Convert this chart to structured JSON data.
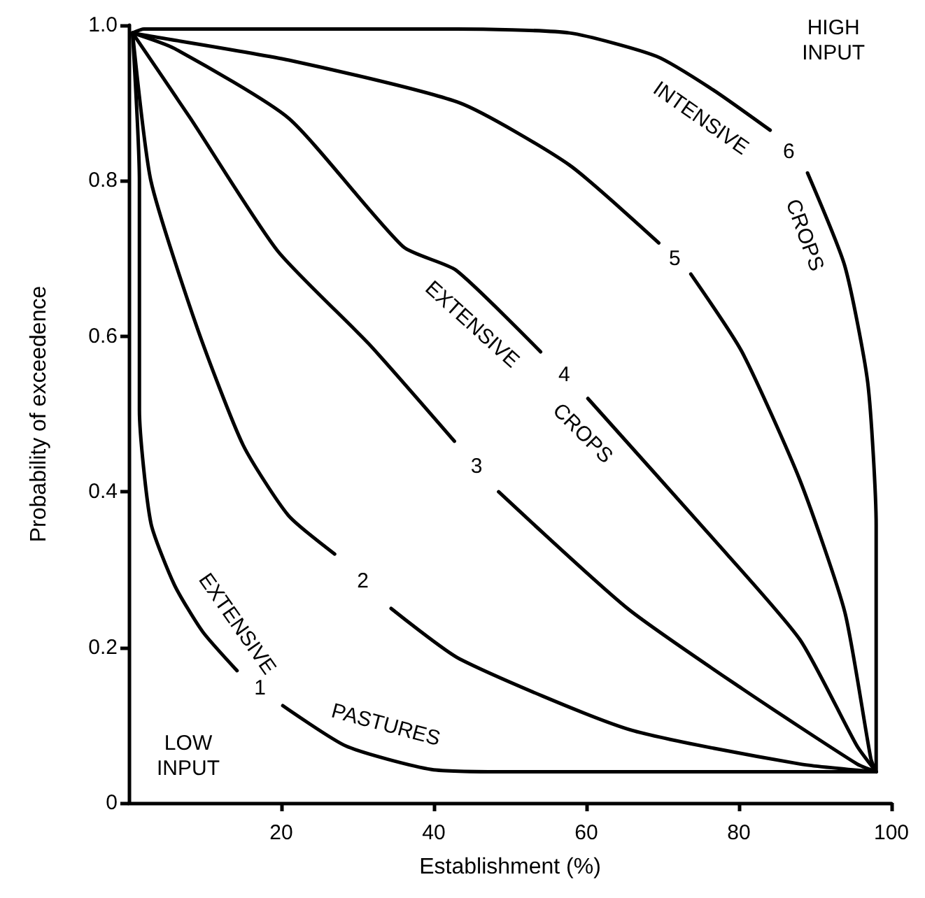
{
  "chart_data": {
    "type": "line",
    "xlabel": "Establishment (%)",
    "ylabel": "Probability of exceedence",
    "xlim": [
      0,
      100
    ],
    "xticks": [
      20,
      40,
      60,
      80,
      100
    ],
    "ylim": [
      0,
      1
    ],
    "yticks": [
      0,
      {
        "value": 0.2,
        "label": "0.2"
      },
      {
        "value": 0.4,
        "label": "0.4"
      },
      {
        "value": 0.6,
        "label": "0.6"
      },
      {
        "value": 0.8,
        "label": "0.8"
      },
      {
        "value": 1,
        "label": "1.0"
      }
    ],
    "grid": false,
    "legend": false,
    "marker": "none",
    "line_style": "solid",
    "series": [
      {
        "name": "1",
        "color": "#000000",
        "x": [
          0.5,
          1.4,
          1.4,
          2.9,
          6,
          9.7,
          14.2,
          17,
          20.2,
          28.5,
          39.7,
          50,
          98
        ],
        "values": [
          0.99,
          0.8,
          0.505,
          0.36,
          0.28,
          0.22,
          0.17,
          null,
          0.125,
          0.073,
          0.043,
          0.04,
          0.04
        ]
      },
      {
        "name": "2",
        "color": "#000000",
        "x": [
          0.5,
          2.9,
          9,
          15,
          20.9,
          27,
          30.5,
          34.4,
          43.4,
          65.4,
          88,
          98
        ],
        "values": [
          0.99,
          0.8,
          0.61,
          0.46,
          0.37,
          0.32,
          null,
          0.25,
          0.185,
          0.095,
          0.05,
          0.04
        ]
      },
      {
        "name": "3",
        "color": "#000000",
        "x": [
          0.5,
          8.1,
          19.5,
          31.5,
          42.7,
          45.5,
          48.5,
          65.4,
          80.4,
          95.5,
          98
        ],
        "values": [
          0.99,
          0.88,
          0.71,
          0.59,
          0.465,
          null,
          0.4,
          0.25,
          0.147,
          0.05,
          0.04
        ]
      },
      {
        "name": "4",
        "color": "#000000",
        "x": [
          0.5,
          6,
          21,
          36,
          42.9,
          54,
          57,
          60.2,
          76.6,
          88,
          95.5,
          98
        ],
        "values": [
          0.99,
          0.97,
          0.88,
          0.715,
          0.685,
          0.58,
          null,
          0.52,
          0.34,
          0.21,
          0.073,
          0.04
        ]
      },
      {
        "name": "5",
        "color": "#000000",
        "x": [
          0.5,
          2.2,
          21,
          43.4,
          57.8,
          69.5,
          71.5,
          73.7,
          80.4,
          88,
          93.9,
          97.3,
          98
        ],
        "values": [
          0.99,
          0.987,
          0.955,
          0.9,
          0.82,
          0.72,
          null,
          0.68,
          0.58,
          0.415,
          0.245,
          0.057,
          0.04
        ]
      },
      {
        "name": "6",
        "color": "#000000",
        "x": [
          0.5,
          2,
          42.9,
          57.8,
          69.2,
          76.6,
          84.1,
          86.5,
          89,
          93.9,
          96.9,
          98,
          98
        ],
        "values": [
          0.99,
          0.995,
          0.995,
          0.99,
          0.96,
          0.917,
          0.865,
          null,
          0.81,
          0.69,
          0.54,
          0.357,
          0.04
        ]
      }
    ],
    "annotations": [
      "EXTENSIVE",
      "PASTURES",
      "EXTENSIVE",
      "CROPS",
      "INTENSIVE",
      "CROPS",
      "LOW\nINPUT",
      "HIGH\nINPUT"
    ]
  }
}
